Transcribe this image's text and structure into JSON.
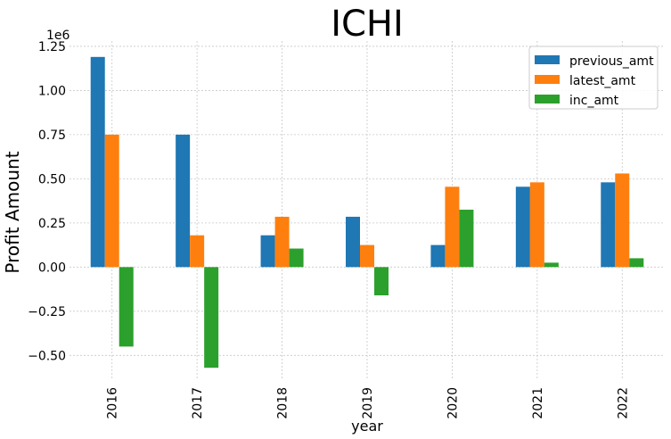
{
  "chart_data": {
    "type": "bar",
    "title": "ICHI",
    "xlabel": "year",
    "ylabel": "Profit Amount",
    "y_scale_label": "1e6",
    "categories": [
      "2016",
      "2017",
      "2018",
      "2019",
      "2020",
      "2021",
      "2022"
    ],
    "series": [
      {
        "name": "previous_amt",
        "color": "#1f77b4",
        "values": [
          1.19,
          0.75,
          0.18,
          0.285,
          0.125,
          0.455,
          0.48
        ]
      },
      {
        "name": "latest_amt",
        "color": "#ff7f0e",
        "values": [
          0.75,
          0.18,
          0.285,
          0.125,
          0.455,
          0.48,
          0.53
        ]
      },
      {
        "name": "inc_amt",
        "color": "#2ca02c",
        "values": [
          -0.45,
          -0.57,
          0.105,
          -0.16,
          0.325,
          0.025,
          0.05
        ]
      }
    ],
    "yticks": [
      "−0.50",
      "−0.25",
      "0.00",
      "0.25",
      "0.50",
      "0.75",
      "1.00",
      "1.25"
    ],
    "ytick_values": [
      -0.5,
      -0.25,
      0,
      0.25,
      0.5,
      0.75,
      1.0,
      1.25
    ],
    "ylim": [
      -0.64,
      1.28
    ],
    "grid": true,
    "legend_position": "top-right"
  }
}
